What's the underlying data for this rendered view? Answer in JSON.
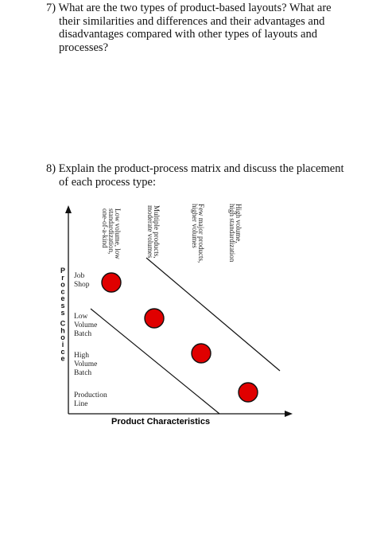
{
  "questions": {
    "q7": "7) What are the two types of product-based layouts? What are\ntheir similarities and differences and their advantages and\ndisadvantages compared with other types of layouts and\nprocesses?",
    "q8": "8) Explain the product-process matrix and discuss the placement\nof each process type:"
  },
  "matrix": {
    "x_axis_title": "Product Characteristics",
    "y_axis_title": "Process Choice",
    "columns": [
      [
        "Low volume, low",
        "standardization,",
        "one-of-a-kind"
      ],
      [
        "Multiple products,",
        "moderate volumes"
      ],
      [
        "Few major products,",
        "higher volumes"
      ],
      [
        "High volume,",
        "high standardization"
      ]
    ],
    "rows": [
      [
        "Job",
        "Shop"
      ],
      [
        "Low",
        "Volume",
        "Batch"
      ],
      [
        "High",
        "Volume",
        "Batch"
      ],
      [
        "Production",
        "Line"
      ]
    ],
    "dot_color": "#e00000"
  }
}
